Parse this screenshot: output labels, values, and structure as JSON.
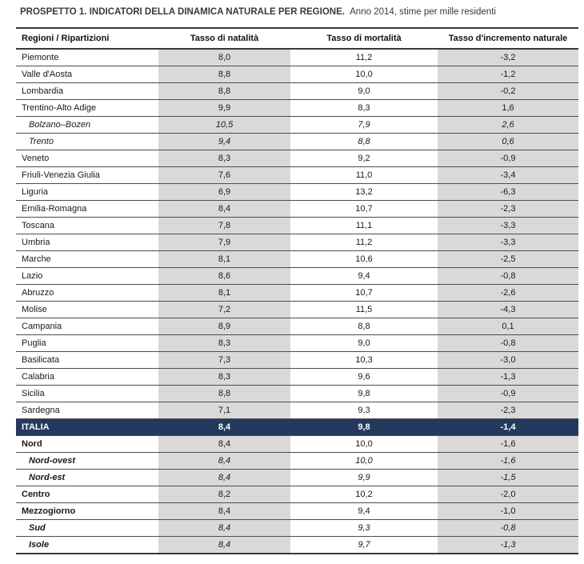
{
  "colors": {
    "band_gray": "#d9d9d9",
    "italia_row_navy": "#24395e",
    "thick_rule": "#383838",
    "row_line": "#4d4d4d",
    "text": "#1a1a1a"
  },
  "chart_data": {
    "type": "table",
    "title": "PROSPETTO 1. INDICATORI DELLA DINAMICA NATURALE PER REGIONE.",
    "subtitle": "Anno 2014, stime per mille residenti",
    "columns": [
      "Regioni / Ripartizioni",
      "Tasso di natalità",
      "Tasso di mortalità",
      "Tasso d'incremento naturale"
    ],
    "rows": [
      {
        "region": "Piemonte",
        "natalita": "8,0",
        "mortalita": "11,2",
        "incremento": "-3,2",
        "style": "regular"
      },
      {
        "region": "Valle d'Aosta",
        "natalita": "8,8",
        "mortalita": "10,0",
        "incremento": "-1,2",
        "style": "regular"
      },
      {
        "region": "Lombardia",
        "natalita": "8,8",
        "mortalita": "9,0",
        "incremento": "-0,2",
        "style": "regular"
      },
      {
        "region": "Trentino-Alto Adige",
        "natalita": "9,9",
        "mortalita": "8,3",
        "incremento": "1,6",
        "style": "regular"
      },
      {
        "region": "Bolzano–Bozen",
        "natalita": "10,5",
        "mortalita": "7,9",
        "incremento": "2,6",
        "style": "sub-italic"
      },
      {
        "region": "Trento",
        "natalita": "9,4",
        "mortalita": "8,8",
        "incremento": "0,6",
        "style": "sub-italic"
      },
      {
        "region": "Veneto",
        "natalita": "8,3",
        "mortalita": "9,2",
        "incremento": "-0,9",
        "style": "regular"
      },
      {
        "region": "Friuli-Venezia Giulia",
        "natalita": "7,6",
        "mortalita": "11,0",
        "incremento": "-3,4",
        "style": "regular"
      },
      {
        "region": "Liguria",
        "natalita": "6,9",
        "mortalita": "13,2",
        "incremento": "-6,3",
        "style": "regular"
      },
      {
        "region": "Emilia-Romagna",
        "natalita": "8,4",
        "mortalita": "10,7",
        "incremento": "-2,3",
        "style": "regular"
      },
      {
        "region": "Toscana",
        "natalita": "7,8",
        "mortalita": "11,1",
        "incremento": "-3,3",
        "style": "regular"
      },
      {
        "region": "Umbria",
        "natalita": "7,9",
        "mortalita": "11,2",
        "incremento": "-3,3",
        "style": "regular"
      },
      {
        "region": "Marche",
        "natalita": "8,1",
        "mortalita": "10,6",
        "incremento": "-2,5",
        "style": "regular"
      },
      {
        "region": "Lazio",
        "natalita": "8,6",
        "mortalita": "9,4",
        "incremento": "-0,8",
        "style": "regular"
      },
      {
        "region": "Abruzzo",
        "natalita": "8,1",
        "mortalita": "10,7",
        "incremento": "-2,6",
        "style": "regular"
      },
      {
        "region": "Molise",
        "natalita": "7,2",
        "mortalita": "11,5",
        "incremento": "-4,3",
        "style": "regular"
      },
      {
        "region": "Campania",
        "natalita": "8,9",
        "mortalita": "8,8",
        "incremento": "0,1",
        "style": "regular"
      },
      {
        "region": "Puglia",
        "natalita": "8,3",
        "mortalita": "9,0",
        "incremento": "-0,8",
        "style": "regular"
      },
      {
        "region": "Basilicata",
        "natalita": "7,3",
        "mortalita": "10,3",
        "incremento": "-3,0",
        "style": "regular"
      },
      {
        "region": "Calabria",
        "natalita": "8,3",
        "mortalita": "9,6",
        "incremento": "-1,3",
        "style": "regular"
      },
      {
        "region": "Sicilia",
        "natalita": "8,8",
        "mortalita": "9,8",
        "incremento": "-0,9",
        "style": "regular"
      },
      {
        "region": "Sardegna",
        "natalita": "7,1",
        "mortalita": "9,3",
        "incremento": "-2,3",
        "style": "regular"
      },
      {
        "region": "ITALIA",
        "natalita": "8,4",
        "mortalita": "9,8",
        "incremento": "-1,4",
        "style": "italia"
      },
      {
        "region": "Nord",
        "natalita": "8,4",
        "mortalita": "10,0",
        "incremento": "-1,6",
        "style": "bold"
      },
      {
        "region": "Nord-ovest",
        "natalita": "8,4",
        "mortalita": "10,0",
        "incremento": "-1,6",
        "style": "bold-italic"
      },
      {
        "region": "Nord-est",
        "natalita": "8,4",
        "mortalita": "9,9",
        "incremento": "-1,5",
        "style": "bold-italic"
      },
      {
        "region": "Centro",
        "natalita": "8,2",
        "mortalita": "10,2",
        "incremento": "-2,0",
        "style": "bold"
      },
      {
        "region": "Mezzogiorno",
        "natalita": "8,4",
        "mortalita": "9,4",
        "incremento": "-1,0",
        "style": "bold"
      },
      {
        "region": "Sud",
        "natalita": "8,4",
        "mortalita": "9,3",
        "incremento": "-0,8",
        "style": "bold-italic"
      },
      {
        "region": "Isole",
        "natalita": "8,4",
        "mortalita": "9,7",
        "incremento": "-1,3",
        "style": "bold-italic"
      }
    ]
  }
}
